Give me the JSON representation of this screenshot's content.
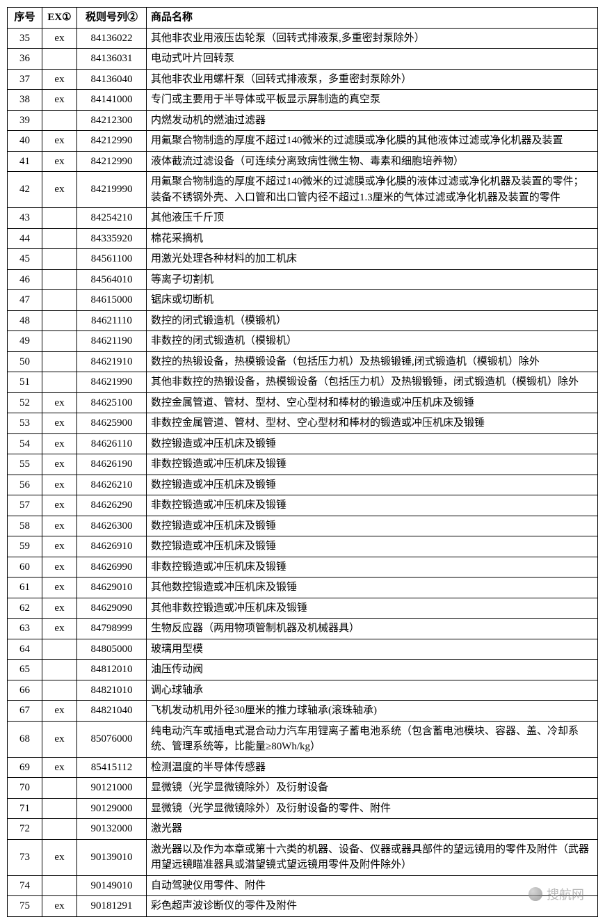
{
  "table": {
    "headers": {
      "seq": "序号",
      "ex": "EX①",
      "code": "税则号列②",
      "name": "商品名称"
    },
    "rows": [
      {
        "seq": "35",
        "ex": "ex",
        "code": "84136022",
        "name": "其他非农业用液压齿轮泵（回转式排液泵,多重密封泵除外）"
      },
      {
        "seq": "36",
        "ex": "",
        "code": "84136031",
        "name": "电动式叶片回转泵"
      },
      {
        "seq": "37",
        "ex": "ex",
        "code": "84136040",
        "name": "其他非农业用螺杆泵（回转式排液泵，多重密封泵除外）"
      },
      {
        "seq": "38",
        "ex": "ex",
        "code": "84141000",
        "name": "专门或主要用于半导体或平板显示屏制造的真空泵"
      },
      {
        "seq": "39",
        "ex": "",
        "code": "84212300",
        "name": "内燃发动机的燃油过滤器"
      },
      {
        "seq": "40",
        "ex": "ex",
        "code": "84212990",
        "name": "用氟聚合物制造的厚度不超过140微米的过滤膜或净化膜的其他液体过滤或净化机器及装置"
      },
      {
        "seq": "41",
        "ex": "ex",
        "code": "84212990",
        "name": "液体截流过滤设备（可连续分离致病性微生物、毒素和细胞培养物）"
      },
      {
        "seq": "42",
        "ex": "ex",
        "code": "84219990",
        "name": "用氟聚合物制造的厚度不超过140微米的过滤膜或净化膜的液体过滤或净化机器及装置的零件；装备不锈钢外壳、入口管和出口管内径不超过1.3厘米的气体过滤或净化机器及装置的零件"
      },
      {
        "seq": "43",
        "ex": "",
        "code": "84254210",
        "name": "其他液压千斤顶"
      },
      {
        "seq": "44",
        "ex": "",
        "code": "84335920",
        "name": "棉花采摘机"
      },
      {
        "seq": "45",
        "ex": "",
        "code": "84561100",
        "name": "用激光处理各种材料的加工机床"
      },
      {
        "seq": "46",
        "ex": "",
        "code": "84564010",
        "name": "等离子切割机"
      },
      {
        "seq": "47",
        "ex": "",
        "code": "84615000",
        "name": "锯床或切断机"
      },
      {
        "seq": "48",
        "ex": "",
        "code": "84621110",
        "name": "数控的闭式锻造机（模锻机）"
      },
      {
        "seq": "49",
        "ex": "",
        "code": "84621190",
        "name": "非数控的闭式锻造机（模锻机）"
      },
      {
        "seq": "50",
        "ex": "",
        "code": "84621910",
        "name": "数控的热锻设备，热模锻设备（包括压力机）及热锻锻锤,闭式锻造机（模锻机）除外"
      },
      {
        "seq": "51",
        "ex": "",
        "code": "84621990",
        "name": "其他非数控的热锻设备，热模锻设备（包括压力机）及热锻锻锤，闭式锻造机（模锻机）除外"
      },
      {
        "seq": "52",
        "ex": "ex",
        "code": "84625100",
        "name": "数控金属管道、管材、型材、空心型材和棒材的锻造或冲压机床及锻锤"
      },
      {
        "seq": "53",
        "ex": "ex",
        "code": "84625900",
        "name": "非数控金属管道、管材、型材、空心型材和棒材的锻造或冲压机床及锻锤"
      },
      {
        "seq": "54",
        "ex": "ex",
        "code": "84626110",
        "name": "数控锻造或冲压机床及锻锤"
      },
      {
        "seq": "55",
        "ex": "ex",
        "code": "84626190",
        "name": "非数控锻造或冲压机床及锻锤"
      },
      {
        "seq": "56",
        "ex": "ex",
        "code": "84626210",
        "name": "数控锻造或冲压机床及锻锤"
      },
      {
        "seq": "57",
        "ex": "ex",
        "code": "84626290",
        "name": "非数控锻造或冲压机床及锻锤"
      },
      {
        "seq": "58",
        "ex": "ex",
        "code": "84626300",
        "name": "数控锻造或冲压机床及锻锤"
      },
      {
        "seq": "59",
        "ex": "ex",
        "code": "84626910",
        "name": "数控锻造或冲压机床及锻锤"
      },
      {
        "seq": "60",
        "ex": "ex",
        "code": "84626990",
        "name": "非数控锻造或冲压机床及锻锤"
      },
      {
        "seq": "61",
        "ex": "ex",
        "code": "84629010",
        "name": "其他数控锻造或冲压机床及锻锤"
      },
      {
        "seq": "62",
        "ex": "ex",
        "code": "84629090",
        "name": "其他非数控锻造或冲压机床及锻锤"
      },
      {
        "seq": "63",
        "ex": "ex",
        "code": "84798999",
        "name": "生物反应器（两用物项管制机器及机械器具）"
      },
      {
        "seq": "64",
        "ex": "",
        "code": "84805000",
        "name": "玻璃用型模"
      },
      {
        "seq": "65",
        "ex": "",
        "code": "84812010",
        "name": "油压传动阀"
      },
      {
        "seq": "66",
        "ex": "",
        "code": "84821010",
        "name": "调心球轴承"
      },
      {
        "seq": "67",
        "ex": "ex",
        "code": "84821040",
        "name": "飞机发动机用外径30厘米的推力球轴承(滚珠轴承)"
      },
      {
        "seq": "68",
        "ex": "ex",
        "code": "85076000",
        "name": "纯电动汽车或插电式混合动力汽车用锂离子蓄电池系统（包含蓄电池模块、容器、盖、冷却系统、管理系统等，比能量≥80Wh/kg）"
      },
      {
        "seq": "69",
        "ex": "ex",
        "code": "85415112",
        "name": "检测温度的半导体传感器"
      },
      {
        "seq": "70",
        "ex": "",
        "code": "90121000",
        "name": "显微镜（光学显微镜除外）及衍射设备"
      },
      {
        "seq": "71",
        "ex": "",
        "code": "90129000",
        "name": "显微镜（光学显微镜除外）及衍射设备的零件、附件"
      },
      {
        "seq": "72",
        "ex": "",
        "code": "90132000",
        "name": "激光器"
      },
      {
        "seq": "73",
        "ex": "ex",
        "code": "90139010",
        "name": "激光器以及作为本章或第十六类的机器、设备、仪器或器具部件的望远镜用的零件及附件（武器用望远镜瞄准器具或潜望镜式望远镜用零件及附件除外）"
      },
      {
        "seq": "74",
        "ex": "",
        "code": "90149010",
        "name": "自动驾驶仪用零件、附件"
      },
      {
        "seq": "75",
        "ex": "ex",
        "code": "90181291",
        "name": "彩色超声波诊断仪的零件及附件"
      }
    ]
  },
  "watermark": {
    "text": "搜航网"
  }
}
